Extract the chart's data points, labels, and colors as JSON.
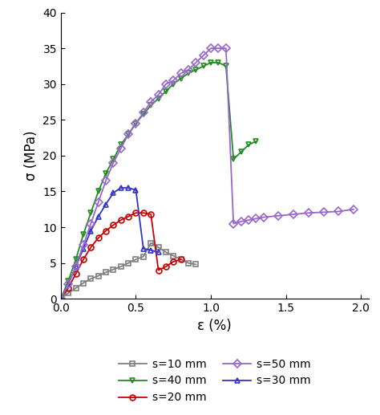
{
  "s10": {
    "x": [
      0.0,
      0.05,
      0.1,
      0.15,
      0.2,
      0.25,
      0.3,
      0.35,
      0.4,
      0.45,
      0.5,
      0.55,
      0.6,
      0.65,
      0.7,
      0.75,
      0.8,
      0.85,
      0.9
    ],
    "y": [
      0.0,
      0.8,
      1.5,
      2.2,
      2.8,
      3.2,
      3.7,
      4.1,
      4.5,
      5.0,
      5.5,
      5.9,
      7.8,
      7.2,
      6.5,
      6.0,
      5.5,
      5.0,
      4.8
    ],
    "color": "#808080",
    "marker": "s",
    "label": "s=10 mm"
  },
  "s20": {
    "x": [
      0.0,
      0.05,
      0.1,
      0.15,
      0.2,
      0.25,
      0.3,
      0.35,
      0.4,
      0.45,
      0.5,
      0.55,
      0.6,
      0.65,
      0.7,
      0.75,
      0.8
    ],
    "y": [
      0.0,
      1.5,
      3.5,
      5.5,
      7.2,
      8.5,
      9.5,
      10.3,
      11.0,
      11.5,
      12.0,
      12.0,
      11.8,
      4.0,
      4.5,
      5.2,
      5.5
    ],
    "color": "#cc0000",
    "marker": "o",
    "label": "s=20 mm"
  },
  "s30": {
    "x": [
      0.0,
      0.05,
      0.1,
      0.15,
      0.2,
      0.25,
      0.3,
      0.35,
      0.4,
      0.45,
      0.5,
      0.55,
      0.6,
      0.65
    ],
    "y": [
      0.0,
      2.0,
      4.5,
      7.0,
      9.5,
      11.5,
      13.2,
      14.8,
      15.5,
      15.5,
      15.2,
      7.0,
      6.8,
      6.5
    ],
    "color": "#3333cc",
    "marker": "^",
    "label": "s=30 mm"
  },
  "s40": {
    "x": [
      0.0,
      0.05,
      0.1,
      0.15,
      0.2,
      0.25,
      0.3,
      0.35,
      0.4,
      0.45,
      0.5,
      0.55,
      0.6,
      0.65,
      0.7,
      0.75,
      0.8,
      0.85,
      0.9,
      0.95,
      1.0,
      1.05,
      1.1,
      1.15,
      1.2,
      1.25,
      1.3
    ],
    "y": [
      0.0,
      2.5,
      5.5,
      9.0,
      12.0,
      15.0,
      17.5,
      19.5,
      21.5,
      23.0,
      24.5,
      25.8,
      27.0,
      28.0,
      29.0,
      30.0,
      30.8,
      31.5,
      32.0,
      32.5,
      33.0,
      33.0,
      32.5,
      19.5,
      20.5,
      21.5,
      22.0
    ],
    "color": "#228B22",
    "marker": "v",
    "label": "s=40 mm"
  },
  "s50": {
    "x": [
      0.0,
      0.05,
      0.1,
      0.15,
      0.2,
      0.25,
      0.3,
      0.35,
      0.4,
      0.45,
      0.5,
      0.55,
      0.6,
      0.65,
      0.7,
      0.75,
      0.8,
      0.85,
      0.9,
      0.95,
      1.0,
      1.05,
      1.1,
      1.15,
      1.2,
      1.25,
      1.3,
      1.35,
      1.45,
      1.55,
      1.65,
      1.75,
      1.85,
      1.95
    ],
    "y": [
      0.0,
      2.0,
      4.5,
      7.5,
      10.5,
      13.5,
      16.5,
      19.0,
      21.0,
      23.0,
      24.5,
      26.0,
      27.5,
      28.5,
      30.0,
      30.5,
      31.5,
      32.0,
      33.0,
      34.0,
      35.0,
      35.0,
      35.0,
      10.5,
      10.8,
      11.0,
      11.2,
      11.4,
      11.6,
      11.8,
      12.0,
      12.1,
      12.2,
      12.5
    ],
    "color": "#9966CC",
    "marker": "D",
    "label": "s=50 mm"
  },
  "xlabel": "ε (%)",
  "ylabel": "σ (MPa)",
  "xlim": [
    0.0,
    2.05
  ],
  "ylim": [
    0,
    40
  ],
  "xticks": [
    0.0,
    0.5,
    1.0,
    1.5,
    2.0
  ],
  "yticks": [
    0,
    5,
    10,
    15,
    20,
    25,
    30,
    35,
    40
  ]
}
